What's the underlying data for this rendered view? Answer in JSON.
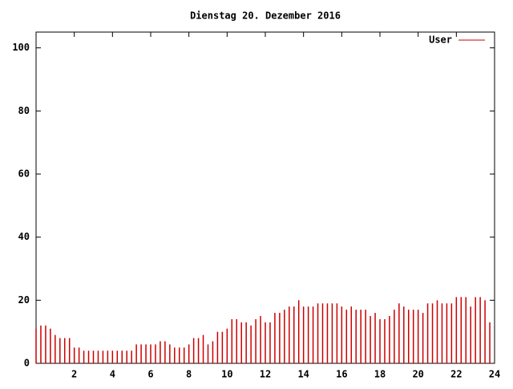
{
  "chart_data": {
    "type": "impulse",
    "title": "Dienstag 20. Dezember 2016",
    "x": [
      0,
      0.25,
      0.5,
      0.75,
      1,
      1.25,
      1.5,
      1.75,
      2,
      2.25,
      2.5,
      2.75,
      3,
      3.25,
      3.5,
      3.75,
      4,
      4.25,
      4.5,
      4.75,
      5,
      5.25,
      5.5,
      5.75,
      6,
      6.25,
      6.5,
      6.75,
      7,
      7.25,
      7.5,
      7.75,
      8,
      8.25,
      8.5,
      8.75,
      9,
      9.25,
      9.5,
      9.75,
      10,
      10.25,
      10.5,
      10.75,
      11,
      11.25,
      11.5,
      11.75,
      12,
      12.25,
      12.5,
      12.75,
      13,
      13.25,
      13.5,
      13.75,
      14,
      14.25,
      14.5,
      14.75,
      15,
      15.25,
      15.5,
      15.75,
      16,
      16.25,
      16.5,
      16.75,
      17,
      17.25,
      17.5,
      17.75,
      18,
      18.25,
      18.5,
      18.75,
      19,
      19.25,
      19.5,
      19.75,
      20,
      20.25,
      20.5,
      20.75,
      21,
      21.25,
      21.5,
      21.75,
      22,
      22.25,
      22.5,
      22.75,
      23,
      23.25,
      23.5,
      23.75
    ],
    "series": [
      {
        "name": "User",
        "color": "#cc0000",
        "values": [
          11,
          12,
          12,
          11,
          9,
          8,
          8,
          8,
          5,
          5,
          4,
          4,
          4,
          4,
          4,
          4,
          4,
          4,
          4,
          4,
          4,
          6,
          6,
          6,
          6,
          6,
          7,
          7,
          6,
          5,
          5,
          5,
          6,
          8,
          8,
          9,
          6,
          7,
          10,
          10,
          11,
          14,
          14,
          13,
          13,
          12,
          14,
          15,
          13,
          13,
          16,
          16,
          17,
          18,
          18,
          20,
          18,
          18,
          18,
          19,
          19,
          19,
          19,
          19,
          18,
          17,
          18,
          17,
          17,
          17,
          15,
          16,
          14,
          14,
          15,
          17,
          19,
          18,
          17,
          17,
          17,
          16,
          19,
          19,
          20,
          19,
          19,
          19,
          21,
          21,
          21,
          18,
          21,
          21,
          20,
          13
        ]
      }
    ],
    "xlim": [
      0,
      24
    ],
    "xticks": [
      2,
      4,
      6,
      8,
      10,
      12,
      14,
      16,
      18,
      20,
      22,
      24
    ],
    "ylim": [
      0,
      105
    ],
    "yticks": [
      0,
      20,
      40,
      60,
      80,
      100
    ],
    "legend": "upper-right"
  }
}
